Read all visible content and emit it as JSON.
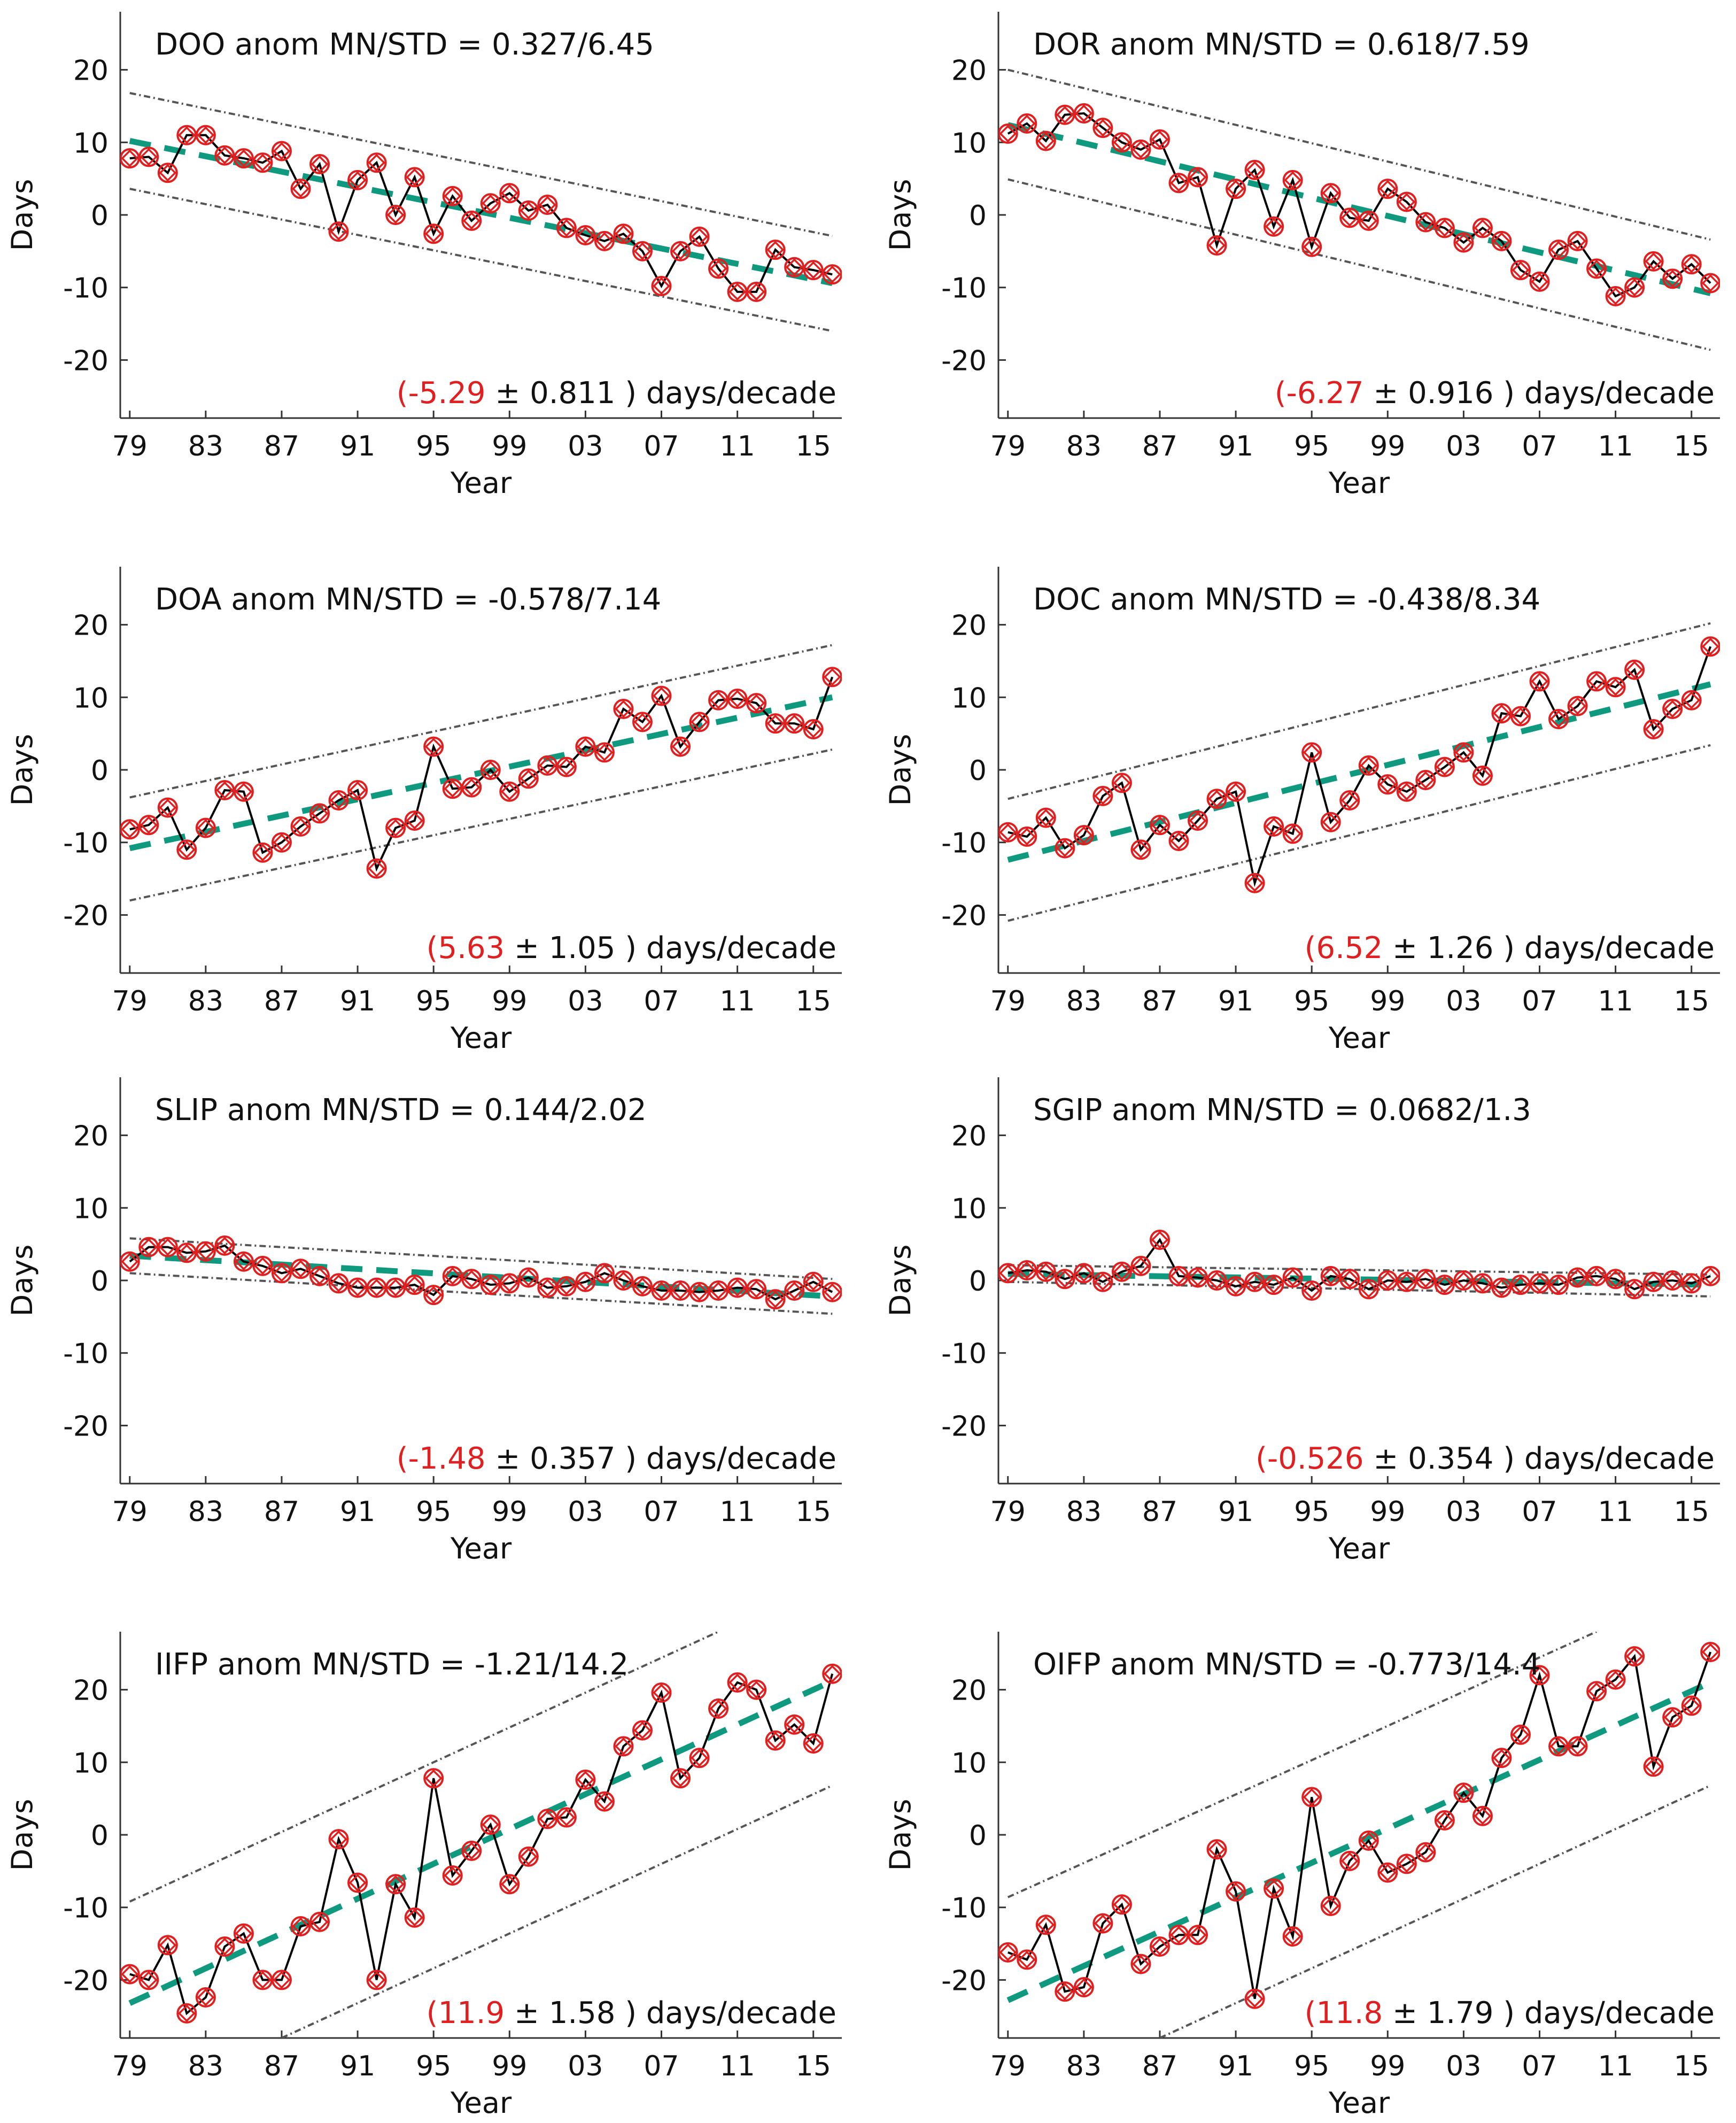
{
  "chart_data": [
    {
      "type": "line",
      "title": "DOO anom  MN/STD = 0.327/6.45",
      "xlabel": "Year",
      "ylabel": "Days",
      "xlim": [
        1978.5,
        2016.5
      ],
      "ylim": [
        -28,
        28
      ],
      "xticks": [
        1979,
        1983,
        1987,
        1991,
        1995,
        1999,
        2003,
        2007,
        2011,
        2015
      ],
      "xticklabels": [
        "79",
        "83",
        "87",
        "91",
        "95",
        "99",
        "03",
        "07",
        "11",
        "15"
      ],
      "yticks": [
        -20,
        -10,
        0,
        10,
        20
      ],
      "yticklabels": [
        "-20",
        "-10",
        "0",
        "10",
        "20"
      ],
      "x": [
        1979,
        1980,
        1981,
        1982,
        1983,
        1984,
        1985,
        1986,
        1987,
        1988,
        1989,
        1990,
        1991,
        1992,
        1993,
        1994,
        1995,
        1996,
        1997,
        1998,
        1999,
        2000,
        2001,
        2002,
        2003,
        2004,
        2005,
        2006,
        2007,
        2008,
        2009,
        2010,
        2011,
        2012,
        2013,
        2014,
        2015,
        2016
      ],
      "values": [
        7.8,
        8.0,
        5.8,
        11.0,
        11.0,
        8.2,
        7.8,
        7.2,
        8.8,
        3.6,
        7.0,
        -2.3,
        4.8,
        7.2,
        0.0,
        5.2,
        -2.6,
        2.6,
        -0.8,
        1.6,
        3.0,
        0.6,
        1.4,
        -1.8,
        -2.8,
        -3.6,
        -2.6,
        -5.0,
        -9.8,
        -5.0,
        -3.0,
        -7.4,
        -10.6,
        -10.6,
        -4.8,
        -7.2,
        -7.6,
        -8.2
      ],
      "trend": {
        "start": [
          1979,
          10.2
        ],
        "end": [
          2016,
          -9.4
        ]
      },
      "bounds": {
        "upper": [
          [
            1979,
            16.8
          ],
          [
            2016,
            -2.9
          ]
        ],
        "lower": [
          [
            1979,
            3.6
          ],
          [
            2016,
            -16.0
          ]
        ]
      },
      "slope_value": "(-5.29",
      "slope_rest": " ± 0.811 ) days/decade"
    },
    {
      "type": "line",
      "title": "DOR anom  MN/STD = 0.618/7.59",
      "xlabel": "Year",
      "ylabel": "Days",
      "xlim": [
        1978.5,
        2016.5
      ],
      "ylim": [
        -28,
        28
      ],
      "xticks": [
        1979,
        1983,
        1987,
        1991,
        1995,
        1999,
        2003,
        2007,
        2011,
        2015
      ],
      "xticklabels": [
        "79",
        "83",
        "87",
        "91",
        "95",
        "99",
        "03",
        "07",
        "11",
        "15"
      ],
      "yticks": [
        -20,
        -10,
        0,
        10,
        20
      ],
      "yticklabels": [
        "-20",
        "-10",
        "0",
        "10",
        "20"
      ],
      "x": [
        1979,
        1980,
        1981,
        1982,
        1983,
        1984,
        1985,
        1986,
        1987,
        1988,
        1989,
        1990,
        1991,
        1992,
        1993,
        1994,
        1995,
        1996,
        1997,
        1998,
        1999,
        2000,
        2001,
        2002,
        2003,
        2004,
        2005,
        2006,
        2007,
        2008,
        2009,
        2010,
        2011,
        2012,
        2013,
        2014,
        2015,
        2016
      ],
      "values": [
        11.2,
        12.6,
        10.2,
        13.8,
        14.0,
        12.0,
        10.0,
        9.0,
        10.4,
        4.4,
        5.2,
        -4.2,
        3.6,
        6.2,
        -1.6,
        4.8,
        -4.4,
        3.0,
        -0.4,
        -0.8,
        3.6,
        1.8,
        -1.0,
        -1.8,
        -3.8,
        -1.8,
        -3.6,
        -7.6,
        -9.2,
        -4.8,
        -3.6,
        -7.4,
        -11.2,
        -10.0,
        -6.4,
        -8.8,
        -6.8,
        -9.4
      ],
      "trend": {
        "start": [
          1979,
          12.4
        ],
        "end": [
          2016,
          -10.8
        ]
      },
      "bounds": {
        "upper": [
          [
            1979,
            20.0
          ],
          [
            2016,
            -3.4
          ]
        ],
        "lower": [
          [
            1979,
            4.9
          ],
          [
            2016,
            -18.6
          ]
        ]
      },
      "slope_value": "(-6.27",
      "slope_rest": " ± 0.916 ) days/decade"
    },
    {
      "type": "line",
      "title": "DOA anom  MN/STD = -0.578/7.14",
      "xlabel": "Year",
      "ylabel": "Days",
      "xlim": [
        1978.5,
        2016.5
      ],
      "ylim": [
        -28,
        28
      ],
      "xticks": [
        1979,
        1983,
        1987,
        1991,
        1995,
        1999,
        2003,
        2007,
        2011,
        2015
      ],
      "xticklabels": [
        "79",
        "83",
        "87",
        "91",
        "95",
        "99",
        "03",
        "07",
        "11",
        "15"
      ],
      "yticks": [
        -20,
        -10,
        0,
        10,
        20
      ],
      "yticklabels": [
        "-20",
        "-10",
        "0",
        "10",
        "20"
      ],
      "x": [
        1979,
        1980,
        1981,
        1982,
        1983,
        1984,
        1985,
        1986,
        1987,
        1988,
        1989,
        1990,
        1991,
        1992,
        1993,
        1994,
        1995,
        1996,
        1997,
        1998,
        1999,
        2000,
        2001,
        2002,
        2003,
        2004,
        2005,
        2006,
        2007,
        2008,
        2009,
        2010,
        2011,
        2012,
        2013,
        2014,
        2015,
        2016
      ],
      "values": [
        -8.2,
        -7.6,
        -5.2,
        -11.0,
        -8.0,
        -2.8,
        -3.0,
        -11.4,
        -10.0,
        -7.8,
        -6.0,
        -4.2,
        -2.8,
        -13.6,
        -8.0,
        -7.0,
        3.2,
        -2.6,
        -2.4,
        0.0,
        -3.0,
        -1.2,
        0.6,
        0.4,
        3.2,
        2.4,
        8.4,
        6.6,
        10.2,
        3.2,
        6.6,
        9.6,
        9.8,
        9.2,
        6.4,
        6.4,
        5.6,
        12.8
      ],
      "trend": {
        "start": [
          1979,
          -10.8
        ],
        "end": [
          2016,
          10.0
        ]
      },
      "bounds": {
        "upper": [
          [
            1979,
            -3.8
          ],
          [
            2016,
            17.2
          ]
        ],
        "lower": [
          [
            1979,
            -18.0
          ],
          [
            2016,
            2.8
          ]
        ]
      },
      "slope_value": "(5.63",
      "slope_rest": " ± 1.05 ) days/decade"
    },
    {
      "type": "line",
      "title": "DOC anom  MN/STD = -0.438/8.34",
      "xlabel": "Year",
      "ylabel": "Days",
      "xlim": [
        1978.5,
        2016.5
      ],
      "ylim": [
        -28,
        28
      ],
      "xticks": [
        1979,
        1983,
        1987,
        1991,
        1995,
        1999,
        2003,
        2007,
        2011,
        2015
      ],
      "xticklabels": [
        "79",
        "83",
        "87",
        "91",
        "95",
        "99",
        "03",
        "07",
        "11",
        "15"
      ],
      "yticks": [
        -20,
        -10,
        0,
        10,
        20
      ],
      "yticklabels": [
        "-20",
        "-10",
        "0",
        "10",
        "20"
      ],
      "x": [
        1979,
        1980,
        1981,
        1982,
        1983,
        1984,
        1985,
        1986,
        1987,
        1988,
        1989,
        1990,
        1991,
        1992,
        1993,
        1994,
        1995,
        1996,
        1997,
        1998,
        1999,
        2000,
        2001,
        2002,
        2003,
        2004,
        2005,
        2006,
        2007,
        2008,
        2009,
        2010,
        2011,
        2012,
        2013,
        2014,
        2015,
        2016
      ],
      "values": [
        -8.6,
        -9.2,
        -6.6,
        -10.8,
        -9.0,
        -3.6,
        -1.8,
        -11.0,
        -7.6,
        -9.8,
        -7.0,
        -4.0,
        -3.0,
        -15.6,
        -7.8,
        -8.8,
        2.4,
        -7.2,
        -4.2,
        0.6,
        -2.0,
        -3.0,
        -1.4,
        0.4,
        2.4,
        -0.8,
        7.8,
        7.4,
        12.2,
        7.0,
        8.8,
        12.2,
        11.4,
        13.8,
        5.6,
        8.4,
        9.6,
        17.0
      ],
      "trend": {
        "start": [
          1979,
          -12.4
        ],
        "end": [
          2016,
          11.8
        ]
      },
      "bounds": {
        "upper": [
          [
            1979,
            -4.0
          ],
          [
            2016,
            20.2
          ]
        ],
        "lower": [
          [
            1979,
            -20.8
          ],
          [
            2016,
            3.4
          ]
        ]
      },
      "slope_value": "(6.52",
      "slope_rest": " ± 1.26 ) days/decade"
    },
    {
      "type": "line",
      "title": "SLIP anom  MN/STD = 0.144/2.02",
      "xlabel": "Year",
      "ylabel": "Days",
      "xlim": [
        1978.5,
        2016.5
      ],
      "ylim": [
        -28,
        28
      ],
      "xticks": [
        1979,
        1983,
        1987,
        1991,
        1995,
        1999,
        2003,
        2007,
        2011,
        2015
      ],
      "xticklabels": [
        "79",
        "83",
        "87",
        "91",
        "95",
        "99",
        "03",
        "07",
        "11",
        "15"
      ],
      "yticks": [
        -20,
        -10,
        0,
        10,
        20
      ],
      "yticklabels": [
        "-20",
        "-10",
        "0",
        "10",
        "20"
      ],
      "x": [
        1979,
        1980,
        1981,
        1982,
        1983,
        1984,
        1985,
        1986,
        1987,
        1988,
        1989,
        1990,
        1991,
        1992,
        1993,
        1994,
        1995,
        1996,
        1997,
        1998,
        1999,
        2000,
        2001,
        2002,
        2003,
        2004,
        2005,
        2006,
        2007,
        2008,
        2009,
        2010,
        2011,
        2012,
        2013,
        2014,
        2015,
        2016
      ],
      "values": [
        2.6,
        4.6,
        4.6,
        3.8,
        4.0,
        4.8,
        2.6,
        2.0,
        1.0,
        1.6,
        0.6,
        -0.4,
        -1.0,
        -1.0,
        -1.0,
        -0.6,
        -2.0,
        0.6,
        0.2,
        -0.6,
        -0.4,
        0.4,
        -1.0,
        -0.8,
        -0.2,
        1.0,
        0.0,
        -0.8,
        -1.4,
        -1.4,
        -1.6,
        -1.4,
        -1.0,
        -1.2,
        -2.6,
        -1.4,
        -0.2,
        -1.6
      ],
      "trend": {
        "start": [
          1979,
          3.4
        ],
        "end": [
          2016,
          -2.2
        ]
      },
      "bounds": {
        "upper": [
          [
            1979,
            5.8
          ],
          [
            2016,
            0.2
          ]
        ],
        "lower": [
          [
            1979,
            1.0
          ],
          [
            2016,
            -4.6
          ]
        ]
      },
      "slope_value": "(-1.48",
      "slope_rest": " ± 0.357 ) days/decade"
    },
    {
      "type": "line",
      "title": "SGIP anom  MN/STD = 0.0682/1.3",
      "xlabel": "Year",
      "ylabel": "Days",
      "xlim": [
        1978.5,
        2016.5
      ],
      "ylim": [
        -28,
        28
      ],
      "xticks": [
        1979,
        1983,
        1987,
        1991,
        1995,
        1999,
        2003,
        2007,
        2011,
        2015
      ],
      "xticklabels": [
        "79",
        "83",
        "87",
        "91",
        "95",
        "99",
        "03",
        "07",
        "11",
        "15"
      ],
      "yticks": [
        -20,
        -10,
        0,
        10,
        20
      ],
      "yticklabels": [
        "-20",
        "-10",
        "0",
        "10",
        "20"
      ],
      "x": [
        1979,
        1980,
        1981,
        1982,
        1983,
        1984,
        1985,
        1986,
        1987,
        1988,
        1989,
        1990,
        1991,
        1992,
        1993,
        1994,
        1995,
        1996,
        1997,
        1998,
        1999,
        2000,
        2001,
        2002,
        2003,
        2004,
        2005,
        2006,
        2007,
        2008,
        2009,
        2010,
        2011,
        2012,
        2013,
        2014,
        2015,
        2016
      ],
      "values": [
        1.0,
        1.4,
        1.2,
        0.2,
        1.0,
        -0.2,
        1.2,
        2.0,
        5.6,
        0.6,
        0.4,
        0.0,
        -0.8,
        -0.2,
        -0.6,
        0.4,
        -1.4,
        0.6,
        0.2,
        -1.2,
        0.0,
        -0.2,
        0.2,
        -0.6,
        0.0,
        -0.4,
        -1.0,
        -0.6,
        -0.4,
        -0.6,
        0.4,
        0.6,
        0.2,
        -1.2,
        -0.2,
        0.0,
        -0.4,
        0.6
      ],
      "trend": {
        "start": [
          1979,
          0.9
        ],
        "end": [
          2016,
          -0.6
        ]
      },
      "bounds": {
        "upper": [
          [
            1979,
            2.1
          ],
          [
            2016,
            0.8
          ]
        ],
        "lower": [
          [
            1979,
            -0.2
          ],
          [
            2016,
            -2.2
          ]
        ]
      },
      "slope_value": "(-0.526",
      "slope_rest": " ± 0.354 ) days/decade"
    },
    {
      "type": "line",
      "title": "IIFP anom  MN/STD = -1.21/14.2",
      "xlabel": "Year",
      "ylabel": "Days",
      "xlim": [
        1978.5,
        2016.5
      ],
      "ylim": [
        -28,
        28
      ],
      "xticks": [
        1979,
        1983,
        1987,
        1991,
        1995,
        1999,
        2003,
        2007,
        2011,
        2015
      ],
      "xticklabels": [
        "79",
        "83",
        "87",
        "91",
        "95",
        "99",
        "03",
        "07",
        "11",
        "15"
      ],
      "yticks": [
        -20,
        -10,
        0,
        10,
        20
      ],
      "yticklabels": [
        "-20",
        "-10",
        "0",
        "10",
        "20"
      ],
      "x": [
        1979,
        1980,
        1981,
        1982,
        1983,
        1984,
        1985,
        1986,
        1987,
        1988,
        1989,
        1990,
        1991,
        1992,
        1993,
        1994,
        1995,
        1996,
        1997,
        1998,
        1999,
        2000,
        2001,
        2002,
        2003,
        2004,
        2005,
        2006,
        2007,
        2008,
        2009,
        2010,
        2011,
        2012,
        2013,
        2014,
        2015,
        2016
      ],
      "values": [
        -19.2,
        -20.0,
        -15.2,
        -24.6,
        -22.4,
        -15.4,
        -13.6,
        -20.0,
        -20.0,
        -12.6,
        -12.0,
        -0.6,
        -6.6,
        -20.0,
        -6.8,
        -11.4,
        7.8,
        -5.6,
        -2.2,
        1.4,
        -6.8,
        -3.0,
        2.2,
        2.4,
        7.6,
        4.6,
        12.2,
        14.4,
        19.6,
        7.8,
        10.6,
        17.4,
        21.0,
        20.0,
        13.0,
        15.2,
        12.6,
        22.2
      ],
      "trend": {
        "start": [
          1979,
          -23.2
        ],
        "end": [
          2016,
          21.2
        ]
      },
      "bounds": {
        "upper": [
          [
            1979,
            -9.2
          ],
          [
            2010,
            28.0
          ]
        ],
        "lower": [
          [
            1987,
            -28.0
          ],
          [
            2016,
            6.8
          ]
        ]
      },
      "slope_value": "(11.9",
      "slope_rest": " ± 1.58 ) days/decade"
    },
    {
      "type": "line",
      "title": "OIFP anom  MN/STD = -0.773/14.4",
      "xlabel": "Year",
      "ylabel": "Days",
      "xlim": [
        1978.5,
        2016.5
      ],
      "ylim": [
        -28,
        28
      ],
      "xticks": [
        1979,
        1983,
        1987,
        1991,
        1995,
        1999,
        2003,
        2007,
        2011,
        2015
      ],
      "xticklabels": [
        "79",
        "83",
        "87",
        "91",
        "95",
        "99",
        "03",
        "07",
        "11",
        "15"
      ],
      "yticks": [
        -20,
        -10,
        0,
        10,
        20
      ],
      "yticklabels": [
        "-20",
        "-10",
        "0",
        "10",
        "20"
      ],
      "x": [
        1979,
        1980,
        1981,
        1982,
        1983,
        1984,
        1985,
        1986,
        1987,
        1988,
        1989,
        1990,
        1991,
        1992,
        1993,
        1994,
        1995,
        1996,
        1997,
        1998,
        1999,
        2000,
        2001,
        2002,
        2003,
        2004,
        2005,
        2006,
        2007,
        2008,
        2009,
        2010,
        2011,
        2012,
        2013,
        2014,
        2015,
        2016
      ],
      "values": [
        -16.2,
        -17.2,
        -12.4,
        -21.6,
        -21.0,
        -12.2,
        -9.6,
        -17.8,
        -15.4,
        -13.8,
        -13.8,
        -2.0,
        -7.8,
        -22.6,
        -7.4,
        -14.0,
        5.2,
        -9.8,
        -3.6,
        -0.8,
        -5.2,
        -4.0,
        -2.4,
        2.0,
        5.8,
        2.6,
        10.6,
        13.8,
        22.0,
        12.2,
        12.2,
        19.8,
        21.4,
        24.6,
        9.4,
        16.2,
        17.8,
        25.2
      ],
      "trend": {
        "start": [
          1979,
          -22.8
        ],
        "end": [
          2016,
          21.0
        ]
      },
      "bounds": {
        "upper": [
          [
            1979,
            -8.6
          ],
          [
            2010,
            28.0
          ]
        ],
        "lower": [
          [
            1987,
            -28.0
          ],
          [
            2016,
            6.8
          ]
        ]
      },
      "slope_value": "(11.8",
      "slope_rest": " ± 1.79 ) days/decade"
    }
  ],
  "colors": {
    "series_line": "#000000",
    "marker": "#e02020",
    "trend": "#0f9a80",
    "bounds": "#555555",
    "slope_value": "#e02020",
    "axis": "#333333",
    "text": "#111111"
  }
}
